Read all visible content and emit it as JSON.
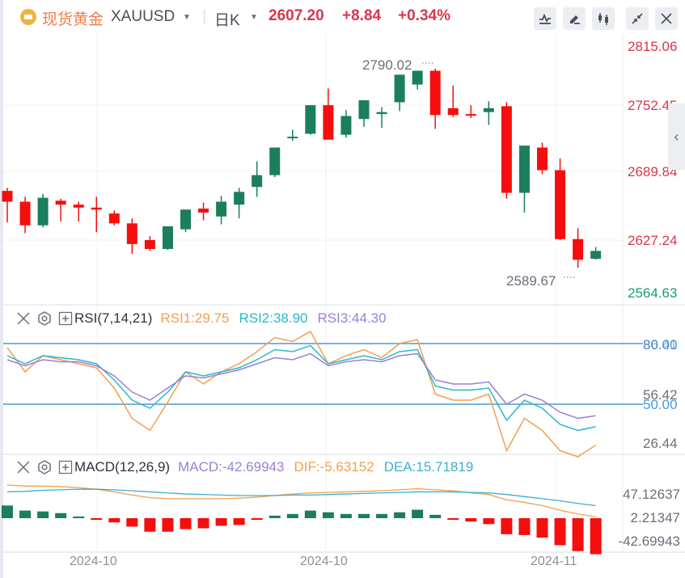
{
  "header": {
    "instrument_cn": "现货黄金",
    "symbol": "XAUUSD",
    "period": "日K",
    "last_price": "2607.20",
    "change": "+8.84",
    "change_pct": "+0.34%",
    "tools": [
      {
        "name": "indicator-icon"
      },
      {
        "name": "draw-icon"
      },
      {
        "name": "candlestick-type-icon"
      },
      {
        "name": "collapse-icon"
      },
      {
        "name": "close-icon"
      }
    ]
  },
  "colors": {
    "up": "#1a7f5a",
    "down": "#f50e0e",
    "price_red": "#d9364d",
    "price_green": "#1a9c7a",
    "rsi1": "#f0a050",
    "rsi2": "#2bb8c8",
    "rsi3": "#9b7fd8",
    "ref_line": "#4a9ad8",
    "dif": "#f0a050",
    "dea": "#3bb0d0"
  },
  "price_axis": {
    "ticks": [
      "2815.06",
      "2752.45",
      "2689.84",
      "2627.24",
      "2564.63"
    ],
    "high_annotation": "2790.02",
    "low_annotation": "2589.67"
  },
  "rsi": {
    "label": "RSI(7,14,21)",
    "rsi1": "RSI1:29.75",
    "rsi2": "RSI2:38.90",
    "rsi3": "RSI3:44.30",
    "axis": {
      "top_a": "80.00",
      "top_b": "86.41",
      "mid_a": "56.42",
      "mid_b": "50.00",
      "low": "26.44"
    }
  },
  "macd": {
    "label": "MACD(12,26,9)",
    "macd": "MACD:-42.69943",
    "dif": "DIF:-5.63152",
    "dea": "DEA:15.71819",
    "axis": [
      "47.12637",
      "2.21347",
      "-42.69943"
    ]
  },
  "x_axis": {
    "labels": [
      "2024-10",
      "2024-10",
      "2024-11"
    ]
  },
  "chart_data": [
    {
      "type": "candlestick",
      "title": "现货黄金 XAUUSD 日K",
      "ylim": [
        2564.63,
        2815.06
      ],
      "yticks": [
        2815.06,
        2752.45,
        2689.84,
        2627.24,
        2564.63
      ],
      "xticks": [
        "2024-10",
        "2024-10",
        "2024-11"
      ],
      "annotations": [
        {
          "label": "2790.02",
          "type": "high"
        },
        {
          "label": "2589.67",
          "type": "low"
        }
      ],
      "ohlc": [
        [
          2668,
          2671,
          2636,
          2657
        ],
        [
          2657,
          2662,
          2625,
          2633
        ],
        [
          2633,
          2665,
          2631,
          2661
        ],
        [
          2658,
          2660,
          2637,
          2654
        ],
        [
          2654,
          2657,
          2637,
          2651
        ],
        [
          2651,
          2662,
          2626,
          2649
        ],
        [
          2645,
          2648,
          2633,
          2635
        ],
        [
          2635,
          2640,
          2604,
          2614
        ],
        [
          2618,
          2622,
          2607,
          2609
        ],
        [
          2609,
          2627,
          2608,
          2632
        ],
        [
          2629,
          2645,
          2626,
          2649
        ],
        [
          2650,
          2656,
          2638,
          2646
        ],
        [
          2642,
          2663,
          2634,
          2657
        ],
        [
          2654,
          2671,
          2640,
          2667
        ],
        [
          2672,
          2698,
          2662,
          2684
        ],
        [
          2684,
          2710,
          2682,
          2712
        ],
        [
          2722,
          2730,
          2719,
          2723
        ],
        [
          2726,
          2755,
          2725,
          2755
        ],
        [
          2755,
          2772,
          2725,
          2720
        ],
        [
          2725,
          2750,
          2722,
          2744
        ],
        [
          2741,
          2757,
          2733,
          2760
        ],
        [
          2746,
          2753,
          2732,
          2748
        ],
        [
          2758,
          2773,
          2749,
          2786
        ],
        [
          2776,
          2788,
          2771,
          2790
        ],
        [
          2790,
          2792,
          2731,
          2745
        ],
        [
          2752,
          2775,
          2743,
          2745
        ],
        [
          2746,
          2755,
          2742,
          2745
        ],
        [
          2748,
          2759,
          2735,
          2752
        ],
        [
          2754,
          2758,
          2660,
          2666
        ],
        [
          2666,
          2713,
          2646,
          2714
        ],
        [
          2712,
          2717,
          2685,
          2689
        ],
        [
          2689,
          2701,
          2618,
          2619
        ],
        [
          2619,
          2630,
          2590,
          2598
        ],
        [
          2599,
          2611,
          2598,
          2607
        ]
      ]
    },
    {
      "type": "line",
      "title": "RSI(7,14,21)",
      "ylim": [
        20,
        90
      ],
      "reference_lines": [
        80,
        50
      ],
      "series": [
        {
          "name": "RSI1",
          "values": [
            78,
            66,
            74,
            72,
            70,
            68,
            58,
            43,
            37,
            51,
            66,
            60,
            66,
            70,
            76,
            83,
            81,
            86,
            70,
            74,
            77,
            73,
            80,
            82,
            55,
            52,
            52,
            55,
            27,
            43,
            37,
            27,
            24,
            29.75
          ]
        },
        {
          "name": "RSI2",
          "values": [
            74,
            70,
            74,
            73,
            72,
            70,
            62,
            52,
            48,
            56,
            66,
            64,
            66,
            68,
            72,
            77,
            76,
            79,
            70,
            72,
            74,
            72,
            76,
            77,
            59,
            57,
            57,
            58,
            42,
            52,
            48,
            40,
            37,
            38.9
          ]
        },
        {
          "name": "RSI3",
          "values": [
            72,
            69,
            72,
            71,
            71,
            69,
            64,
            56,
            52,
            58,
            64,
            63,
            65,
            67,
            70,
            73,
            72,
            75,
            69,
            71,
            72,
            71,
            74,
            75,
            62,
            60,
            60,
            61,
            50,
            55,
            52,
            46,
            43,
            44.3
          ]
        }
      ]
    },
    {
      "type": "bar",
      "title": "MACD(12,26,9)",
      "series": [
        {
          "name": "MACD",
          "values": [
            15,
            9,
            8,
            6,
            2,
            -2,
            -5,
            -10,
            -16,
            -16,
            -13,
            -12,
            -9,
            -8,
            -2,
            3,
            5,
            9,
            7,
            5,
            5,
            5,
            7,
            10,
            4,
            -1,
            -4,
            -7,
            -19,
            -20,
            -23,
            -32,
            -39,
            -42.69943
          ]
        },
        {
          "name": "DIF",
          "values": [
            55,
            53,
            53,
            52,
            50,
            47,
            42,
            36,
            31,
            29,
            29,
            29,
            29,
            30,
            32,
            35,
            38,
            40,
            41,
            42,
            43,
            44,
            46,
            48,
            46,
            44,
            40,
            37,
            27,
            22,
            16,
            7,
            0,
            -5.63152
          ]
        },
        {
          "name": "DEA",
          "values": [
            42,
            43,
            45,
            46,
            47,
            47,
            46,
            44,
            42,
            40,
            38,
            37,
            36,
            35,
            35,
            35,
            36,
            36,
            37,
            38,
            39,
            40,
            41,
            42,
            42,
            42,
            41,
            40,
            37,
            33,
            29,
            25,
            20,
            15.71819
          ]
        }
      ]
    }
  ]
}
